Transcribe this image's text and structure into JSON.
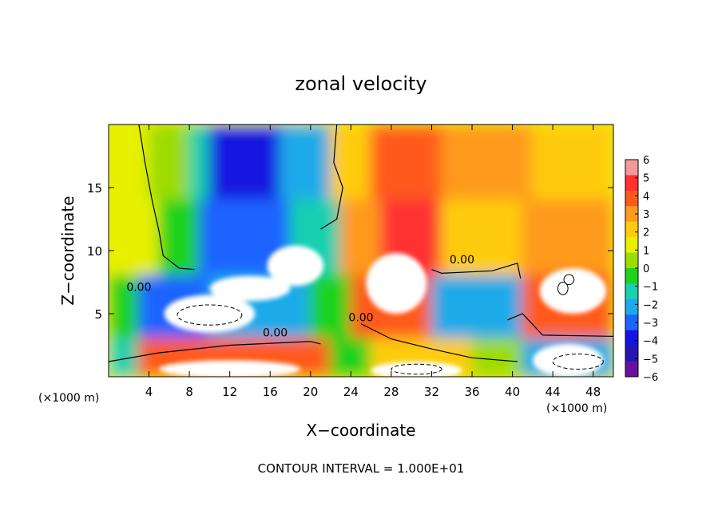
{
  "chart_data": {
    "type": "heatmap",
    "title": "zonal velocity",
    "xlabel": "X−coordinate",
    "ylabel": "Z−coordinate",
    "x_unit_left": "(×1000 m)",
    "x_unit_right": "(×1000 m)",
    "footnote": "CONTOUR INTERVAL = 1.000E+01",
    "xlim": [
      0,
      50
    ],
    "ylim": [
      0,
      20
    ],
    "x_ticks": [
      4,
      8,
      12,
      16,
      20,
      24,
      28,
      32,
      36,
      40,
      44,
      48
    ],
    "y_ticks": [
      5,
      10,
      15
    ],
    "contour_labels": [
      {
        "text": "0.00",
        "x": 3,
        "y": 6.8
      },
      {
        "text": "0.00",
        "x": 16.5,
        "y": 3.2
      },
      {
        "text": "0.00",
        "x": 25,
        "y": 4.4
      },
      {
        "text": "0.00",
        "x": 35,
        "y": 9.0
      }
    ],
    "colorbar": {
      "ticks": [
        "6",
        "5",
        "4",
        "3",
        "2",
        "1",
        "0",
        "−1",
        "−2",
        "−3",
        "−4",
        "−5",
        "−6"
      ],
      "colors": [
        "#f29999",
        "#ff3030",
        "#ff5a1e",
        "#ff9a1e",
        "#ffcc10",
        "#e8f000",
        "#9cdc00",
        "#1ed21e",
        "#19d0b0",
        "#1eaae8",
        "#1e64ff",
        "#1414e0",
        "#2814b4",
        "#6a10a0"
      ]
    },
    "cells": [
      {
        "x0": 0,
        "y0": 14,
        "x1": 4,
        "y1": 20,
        "v": 1
      },
      {
        "x0": 4,
        "y0": 14,
        "x1": 8,
        "y1": 20,
        "v": 0
      },
      {
        "x0": 8,
        "y0": 14,
        "x1": 10,
        "y1": 20,
        "v": -2
      },
      {
        "x0": 10,
        "y0": 14,
        "x1": 17,
        "y1": 20,
        "v": -5
      },
      {
        "x0": 17,
        "y0": 14,
        "x1": 22,
        "y1": 20,
        "v": -3
      },
      {
        "x0": 22,
        "y0": 14,
        "x1": 26,
        "y1": 20,
        "v": 2
      },
      {
        "x0": 26,
        "y0": 14,
        "x1": 33,
        "y1": 20,
        "v": 4
      },
      {
        "x0": 33,
        "y0": 14,
        "x1": 42,
        "y1": 20,
        "v": 3
      },
      {
        "x0": 42,
        "y0": 14,
        "x1": 50,
        "y1": 20,
        "v": 2
      },
      {
        "x0": 0,
        "y0": 8,
        "x1": 5,
        "y1": 14,
        "v": 1
      },
      {
        "x0": 5,
        "y0": 8,
        "x1": 9,
        "y1": 14,
        "v": -1
      },
      {
        "x0": 9,
        "y0": 8,
        "x1": 18,
        "y1": 14,
        "v": -4
      },
      {
        "x0": 18,
        "y0": 8,
        "x1": 23,
        "y1": 14,
        "v": -2
      },
      {
        "x0": 23,
        "y0": 8,
        "x1": 27,
        "y1": 14,
        "v": 3
      },
      {
        "x0": 27,
        "y0": 8,
        "x1": 33,
        "y1": 14,
        "v": 5
      },
      {
        "x0": 33,
        "y0": 8,
        "x1": 41,
        "y1": 14,
        "v": 2
      },
      {
        "x0": 41,
        "y0": 8,
        "x1": 50,
        "y1": 14,
        "v": 3
      },
      {
        "x0": 0,
        "y0": 3,
        "x1": 3,
        "y1": 8,
        "v": -1
      },
      {
        "x0": 3,
        "y0": 3,
        "x1": 10,
        "y1": 8,
        "v": -4
      },
      {
        "x0": 10,
        "y0": 3,
        "x1": 20,
        "y1": 8,
        "v": -3
      },
      {
        "x0": 20,
        "y0": 3,
        "x1": 24,
        "y1": 8,
        "v": -1
      },
      {
        "x0": 24,
        "y0": 3,
        "x1": 32,
        "y1": 8,
        "v": 4
      },
      {
        "x0": 32,
        "y0": 3,
        "x1": 41,
        "y1": 8,
        "v": -3
      },
      {
        "x0": 41,
        "y0": 3,
        "x1": 50,
        "y1": 8,
        "v": 4
      },
      {
        "x0": 0,
        "y0": 0,
        "x1": 3,
        "y1": 3,
        "v": -2
      },
      {
        "x0": 3,
        "y0": 0,
        "x1": 22,
        "y1": 3,
        "v": 4
      },
      {
        "x0": 22,
        "y0": 0,
        "x1": 26,
        "y1": 3,
        "v": -1
      },
      {
        "x0": 26,
        "y0": 0,
        "x1": 36,
        "y1": 3,
        "v": 2
      },
      {
        "x0": 36,
        "y0": 0,
        "x1": 41,
        "y1": 3,
        "v": 0
      },
      {
        "x0": 41,
        "y0": 0,
        "x1": 50,
        "y1": 3,
        "v": -3
      }
    ],
    "white_regions": [
      {
        "cx": 10,
        "cy": 5,
        "rx": 4.5,
        "ry": 1.5
      },
      {
        "cx": 18.5,
        "cy": 8.8,
        "rx": 2.8,
        "ry": 1.6
      },
      {
        "cx": 14,
        "cy": 7,
        "rx": 4,
        "ry": 1
      },
      {
        "cx": 12,
        "cy": 0.6,
        "rx": 7,
        "ry": 0.7
      },
      {
        "cx": 28.5,
        "cy": 7.4,
        "rx": 3,
        "ry": 2.4
      },
      {
        "cx": 30.5,
        "cy": 0.5,
        "rx": 4.5,
        "ry": 0.7
      },
      {
        "cx": 46,
        "cy": 6.8,
        "rx": 3.3,
        "ry": 1.8
      },
      {
        "cx": 45.5,
        "cy": 1.3,
        "rx": 3.5,
        "ry": 1.3
      }
    ]
  }
}
